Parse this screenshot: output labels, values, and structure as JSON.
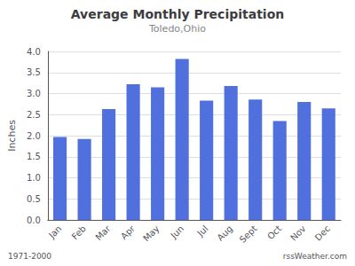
{
  "chart_data": {
    "type": "bar",
    "title": "Average Monthly Precipitation",
    "subtitle": "Toledo,Ohio",
    "ylabel": "Inches",
    "categories": [
      "Jan",
      "Feb",
      "Mar",
      "Apr",
      "May",
      "Jun",
      "Jul",
      "Aug",
      "Sept",
      "Oct",
      "Nov",
      "Dec"
    ],
    "values": [
      1.97,
      1.92,
      2.63,
      3.22,
      3.15,
      3.82,
      2.83,
      3.18,
      2.86,
      2.35,
      2.8,
      2.65
    ],
    "ylim": [
      0,
      4.0
    ],
    "yticks": [
      {
        "value": 0,
        "label": "0.0"
      },
      0.5,
      {
        "value": 1,
        "label": "1.0"
      },
      1.5,
      {
        "value": 2,
        "label": "2.0"
      },
      2.5,
      {
        "value": 3,
        "label": "3.0"
      },
      3.5,
      {
        "value": 4,
        "label": "4.0"
      }
    ],
    "grid": true,
    "annotations": [
      "1971-2000",
      "rssWeather.com"
    ]
  }
}
